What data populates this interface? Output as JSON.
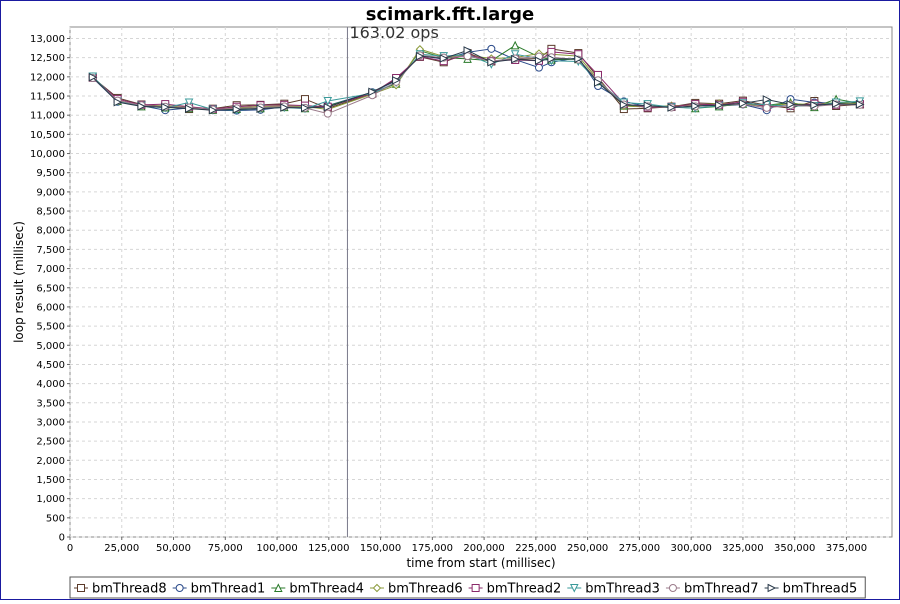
{
  "chart_data": {
    "type": "line",
    "title": "scimark.fft.large",
    "xlabel": "time from start (millisec)",
    "ylabel": "loop result (millisec)",
    "xlim": [
      0,
      397000
    ],
    "ylim": [
      0,
      13300
    ],
    "x_ticks": [
      0,
      25000,
      50000,
      75000,
      100000,
      125000,
      150000,
      175000,
      200000,
      225000,
      250000,
      275000,
      300000,
      325000,
      350000,
      375000
    ],
    "x_tick_labels": [
      "0",
      "25,000",
      "50,000",
      "75,000",
      "100,000",
      "125,000",
      "150,000",
      "175,000",
      "200,000",
      "225,000",
      "250,000",
      "275,000",
      "300,000",
      "325,000",
      "350,000",
      "375,000"
    ],
    "y_ticks": [
      0,
      500,
      1000,
      1500,
      2000,
      2500,
      3000,
      3500,
      4000,
      4500,
      5000,
      5500,
      6000,
      6500,
      7000,
      7500,
      8000,
      8500,
      9000,
      9500,
      10000,
      10500,
      11000,
      11500,
      12000,
      12500,
      13000
    ],
    "y_tick_labels": [
      "0",
      "500",
      "1,000",
      "1,500",
      "2,000",
      "2,500",
      "3,000",
      "3,500",
      "4,000",
      "4,500",
      "5,000",
      "5,500",
      "6,000",
      "6,500",
      "7,000",
      "7,500",
      "8,000",
      "8,500",
      "9,000",
      "9,500",
      "10,000",
      "10,500",
      "11,000",
      "11,500",
      "12,000",
      "12,500",
      "13,000"
    ],
    "grid": true,
    "legend_position": "bottom",
    "marker_line": {
      "x": 134000,
      "label": "163.02 ops"
    },
    "x": [
      11000,
      23000,
      34500,
      46000,
      57500,
      69000,
      80500,
      92000,
      103500,
      113500,
      124500,
      146000,
      157500,
      169000,
      180500,
      192000,
      203500,
      215000,
      226500,
      232500,
      245500,
      255000,
      267500,
      279000,
      290500,
      302000,
      313500,
      325000,
      336500,
      348000,
      359500,
      370000,
      381500
    ],
    "series": [
      {
        "name": "bmThread8",
        "marker": "square",
        "color": "#5a3a2a",
        "values": [
          11980,
          11450,
          11280,
          11230,
          11160,
          11170,
          11260,
          11270,
          11300,
          11420,
          11180,
          11560,
          11950,
          12520,
          12380,
          12620,
          12400,
          12460,
          12480,
          12730,
          12620,
          11980,
          11160,
          11180,
          11220,
          11320,
          11300,
          11380,
          11260,
          11180,
          11370,
          11240,
          11280
        ]
      },
      {
        "name": "bmThread1",
        "marker": "circle",
        "color": "#2a4a8a",
        "values": [
          11970,
          11350,
          11250,
          11130,
          11190,
          11130,
          11120,
          11140,
          11220,
          11200,
          11250,
          11600,
          11900,
          12560,
          12460,
          12640,
          12730,
          12450,
          12240,
          12380,
          12500,
          11760,
          11360,
          11220,
          11230,
          11280,
          11240,
          11280,
          11130,
          11420,
          11330,
          11310,
          11320
        ]
      },
      {
        "name": "bmThread4",
        "marker": "triangle-up",
        "color": "#2a7a2a",
        "values": [
          12000,
          11370,
          11230,
          11200,
          11180,
          11140,
          11160,
          11180,
          11210,
          11180,
          11240,
          11580,
          11820,
          12680,
          12500,
          12470,
          12420,
          12820,
          12520,
          12450,
          12460,
          11890,
          11250,
          11240,
          11220,
          11180,
          11230,
          11300,
          11260,
          11330,
          11210,
          11420,
          11310
        ]
      },
      {
        "name": "bmThread6",
        "marker": "diamond",
        "color": "#8a9a3a",
        "values": [
          11990,
          11390,
          11240,
          11250,
          11200,
          11170,
          11190,
          11230,
          11240,
          11230,
          11150,
          11550,
          11780,
          12720,
          12530,
          12560,
          12480,
          12500,
          12610,
          12590,
          12540,
          11930,
          11240,
          11210,
          11250,
          11260,
          11310,
          11290,
          11240,
          11300,
          11280,
          11330,
          11300
        ]
      },
      {
        "name": "bmThread2",
        "marker": "square",
        "color": "#8a2a6a",
        "values": [
          11980,
          11420,
          11270,
          11290,
          11220,
          11160,
          11220,
          11260,
          11270,
          11250,
          11220,
          11570,
          11970,
          12530,
          12410,
          12580,
          12420,
          12440,
          12420,
          12650,
          12590,
          12050,
          11300,
          11200,
          11220,
          11290,
          11270,
          11350,
          11220,
          11240,
          11300,
          11270,
          11290
        ]
      },
      {
        "name": "bmThread3",
        "marker": "triangle-down",
        "color": "#3a9a9a",
        "values": [
          12010,
          11360,
          11250,
          11190,
          11330,
          11150,
          11130,
          11180,
          11200,
          11170,
          11370,
          11570,
          11850,
          12590,
          12540,
          12580,
          12330,
          12590,
          12480,
          12420,
          12400,
          11880,
          11330,
          11290,
          11210,
          11180,
          11250,
          11310,
          11270,
          11240,
          11240,
          11330,
          11360
        ]
      },
      {
        "name": "bmThread7",
        "marker": "circle",
        "color": "#9a7a8a",
        "values": [
          11970,
          11380,
          11260,
          11220,
          11200,
          11150,
          11180,
          11200,
          11230,
          11190,
          11040,
          11520,
          11870,
          12560,
          12500,
          12540,
          12410,
          12480,
          12530,
          12510,
          12450,
          11910,
          11280,
          11230,
          11200,
          11230,
          11260,
          11290,
          11190,
          11260,
          11230,
          11280,
          11270
        ]
      },
      {
        "name": "bmThread5",
        "marker": "triangle-right",
        "color": "#2a3a4a",
        "values": [
          11990,
          11340,
          11230,
          11210,
          11170,
          11130,
          11150,
          11170,
          11200,
          11190,
          11210,
          11610,
          11910,
          12540,
          12480,
          12690,
          12380,
          12460,
          12420,
          12470,
          12470,
          11850,
          11270,
          11250,
          11200,
          11240,
          11260,
          11310,
          11410,
          11280,
          11260,
          11300,
          11280
        ]
      }
    ]
  }
}
